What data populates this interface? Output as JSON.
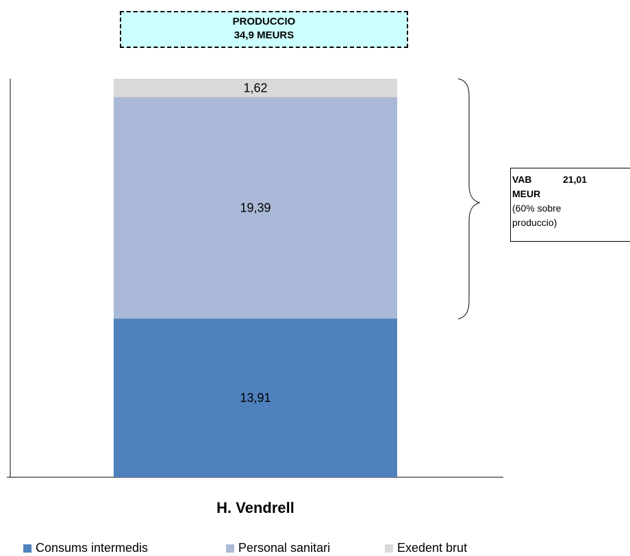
{
  "production_box": {
    "line1": "PRODUCCIO",
    "line2": "34,9  MEURS"
  },
  "vab_box": {
    "label": "VAB",
    "value": "21,01",
    "unit": "MEUR",
    "note_line1": "(60% sobre",
    "note_line2": "produccio)"
  },
  "chart_data": {
    "type": "bar",
    "stacked": true,
    "categories": [
      "H. Vendrell"
    ],
    "series": [
      {
        "name": "Consums intermedis",
        "values": [
          13.91
        ],
        "label": "13,91",
        "color": "#4f81bd"
      },
      {
        "name": "Personal sanitari",
        "values": [
          19.39
        ],
        "label": "19,39",
        "color": "#aab9d7"
      },
      {
        "name": "Exedent brut",
        "values": [
          1.62
        ],
        "label": "1,62",
        "color": "#d9d9d9"
      }
    ],
    "ylim": [
      0,
      34.92
    ],
    "legend_position": "bottom"
  }
}
